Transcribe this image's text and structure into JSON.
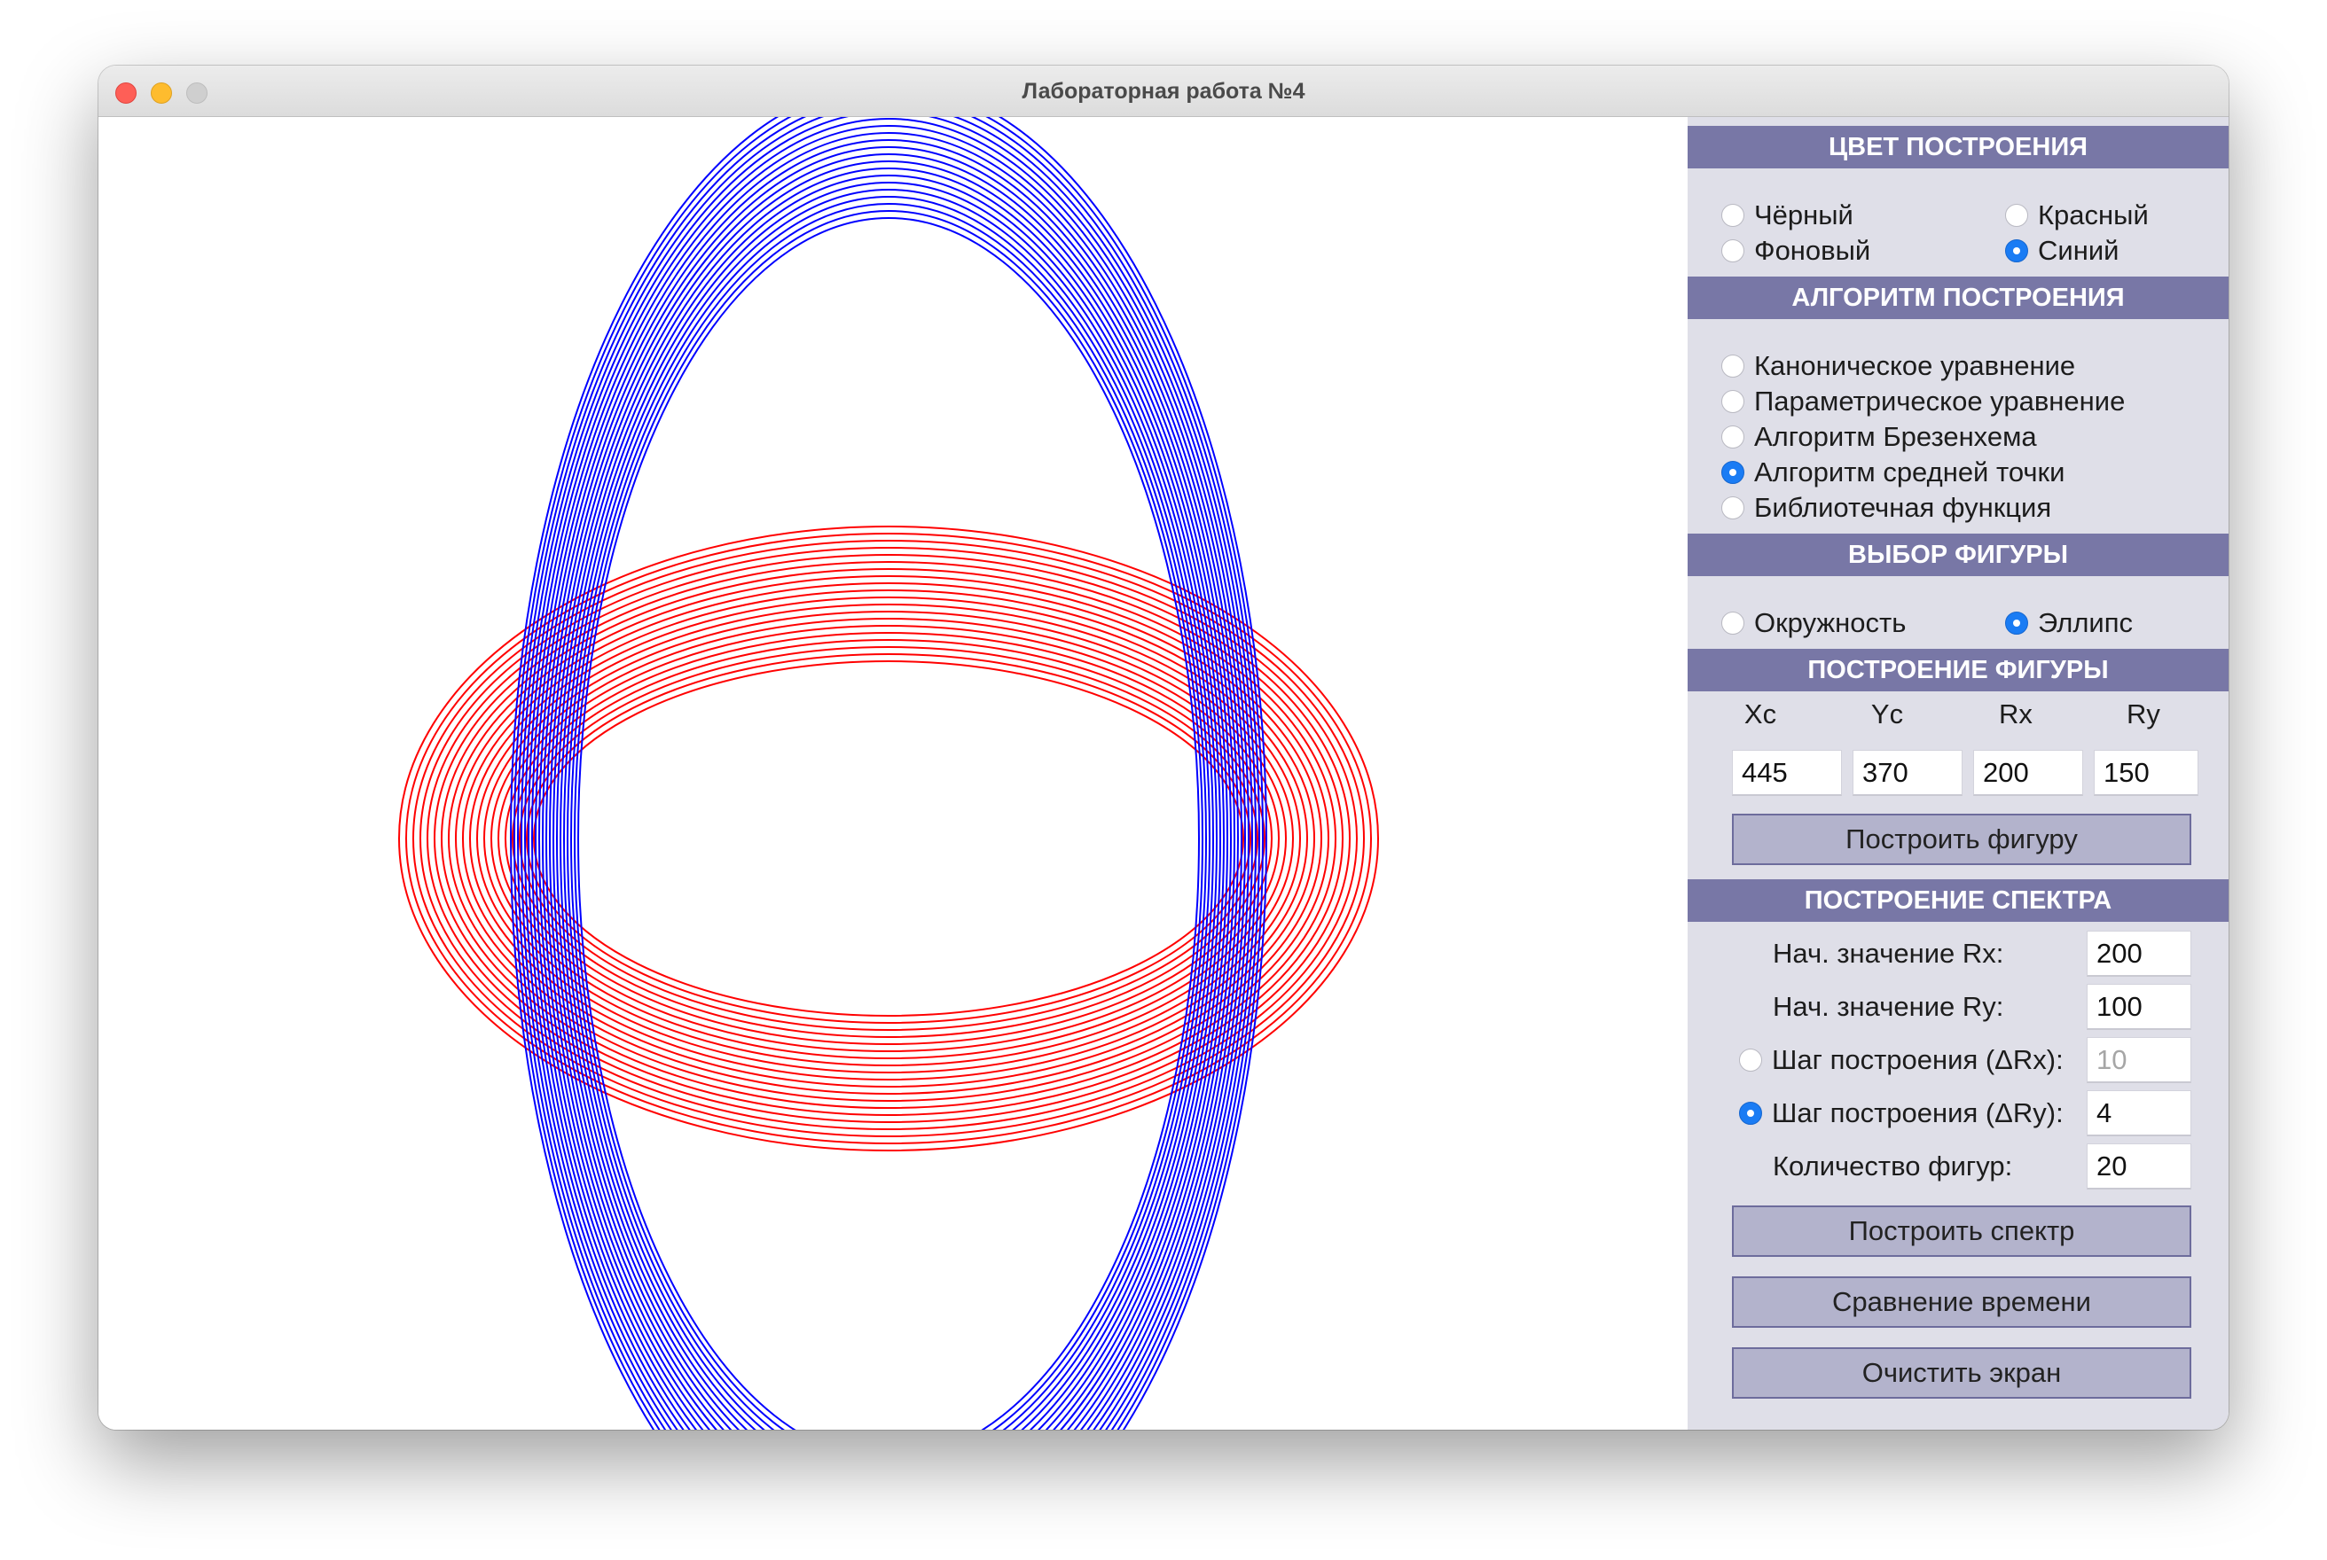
{
  "window": {
    "title": "Лабораторная работа №4"
  },
  "color_section": {
    "header": "ЦВЕТ ПОСТРОЕНИЯ",
    "options": [
      {
        "label": "Чёрный",
        "selected": false
      },
      {
        "label": "Красный",
        "selected": false
      },
      {
        "label": "Фоновый",
        "selected": false
      },
      {
        "label": "Синий",
        "selected": true
      }
    ]
  },
  "algorithm_section": {
    "header": "АЛГОРИТМ ПОСТРОЕНИЯ",
    "options": [
      {
        "label": "Каноническое уравнение",
        "selected": false
      },
      {
        "label": "Параметрическое уравнение",
        "selected": false
      },
      {
        "label": "Алгоритм Брезенхема",
        "selected": false
      },
      {
        "label": "Алгоритм средней точки",
        "selected": true
      },
      {
        "label": "Библиотечная функция",
        "selected": false
      }
    ]
  },
  "figure_section": {
    "header": "ВЫБОР ФИГУРЫ",
    "options": [
      {
        "label": "Окружность",
        "selected": false
      },
      {
        "label": "Эллипс",
        "selected": true
      }
    ]
  },
  "build_figure": {
    "header": "ПОСТРОЕНИЕ ФИГУРЫ",
    "columns": [
      "Xc",
      "Yc",
      "Rx",
      "Ry"
    ],
    "values": [
      "445",
      "370",
      "200",
      "150"
    ],
    "button": "Построить фигуру"
  },
  "spectrum": {
    "header": "ПОСТРОЕНИЕ СПЕКТРА",
    "start_rx_label": "Нач. значение Rx:",
    "start_rx": "200",
    "start_ry_label": "Нач. значение Ry:",
    "start_ry": "100",
    "step_rx_label": "Шаг построения (ΔRx):",
    "step_rx": "10",
    "step_rx_selected": false,
    "step_ry_label": "Шаг построения (ΔRy):",
    "step_ry": "4",
    "step_ry_selected": true,
    "count_label": "Количество фигур:",
    "count": "20",
    "build_button": "Построить спектр",
    "compare_button": "Сравнение времени",
    "clear_button": "Очистить экран"
  },
  "canvas": {
    "colors": {
      "red": "#ff0000",
      "blue": "#0000ff",
      "background": "#ffffff"
    },
    "red_spectrum": {
      "rx_start": 400,
      "rx_step": 8,
      "ry_start": 200,
      "ry_step": 8,
      "count": 20
    },
    "blue_spectrum": {
      "rx_start": 350,
      "rx_step": 4,
      "ry_start": 700,
      "ry_step": 8,
      "count": 20
    }
  }
}
